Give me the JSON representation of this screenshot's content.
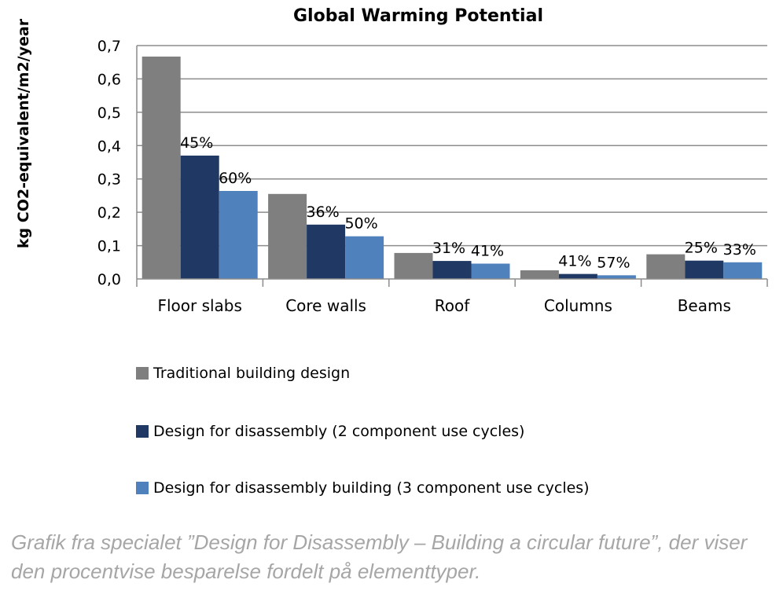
{
  "chart_data": {
    "type": "bar",
    "title": "Global Warming Potential",
    "ylabel": "kg CO2-equivalent/m2/year",
    "xlabel": "",
    "ylim": [
      0,
      0.7
    ],
    "yticks": [
      "0,0",
      "0,1",
      "0,2",
      "0,3",
      "0,4",
      "0,5",
      "0,6",
      "0,7"
    ],
    "grid": true,
    "legend_position": "bottom",
    "categories": [
      "Floor slabs",
      "Core walls",
      "Roof",
      "Columns",
      "Beams"
    ],
    "series": [
      {
        "name": "Traditional building design",
        "color": "#7f7f7f",
        "values": [
          0.667,
          0.255,
          0.078,
          0.026,
          0.074
        ],
        "labels": [
          "",
          "",
          "",
          "",
          ""
        ]
      },
      {
        "name": "Design for disassembly (2 component use cycles)",
        "color": "#1f3864",
        "values": [
          0.37,
          0.163,
          0.054,
          0.015,
          0.055
        ],
        "labels": [
          "45%",
          "36%",
          "31%",
          "41%",
          "25%"
        ]
      },
      {
        "name": "Design for disassembly building (3 component use cycles)",
        "color": "#4f81bd",
        "values": [
          0.264,
          0.128,
          0.046,
          0.011,
          0.05
        ],
        "labels": [
          "60%",
          "50%",
          "41%",
          "57%",
          "33%"
        ]
      }
    ]
  },
  "caption": "Grafik fra specialet ”Design for Disassembly – Building a circular future”, der viser den procentvise besparelse fordelt på elementtyper."
}
